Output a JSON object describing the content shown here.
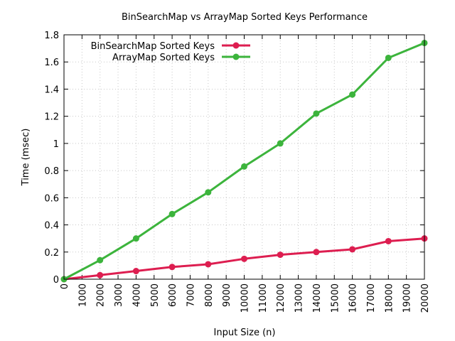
{
  "chart_data": {
    "type": "line",
    "title": "BinSearchMap vs ArrayMap Sorted Keys Performance",
    "xlabel": "Input Size (n)",
    "ylabel": "Time (msec)",
    "xlim": [
      0,
      20000
    ],
    "ylim": [
      0,
      1.8
    ],
    "xticks": [
      0,
      1000,
      2000,
      3000,
      4000,
      5000,
      6000,
      7000,
      8000,
      9000,
      10000,
      11000,
      12000,
      13000,
      14000,
      15000,
      16000,
      17000,
      18000,
      19000,
      20000
    ],
    "xtick_labels": [
      "0",
      "1000",
      "2000",
      "3000",
      "4000",
      "5000",
      "6000",
      "7000",
      "8000",
      "9000",
      "10000",
      "11000",
      "12000",
      "13000",
      "14000",
      "15000",
      "16000",
      "17000",
      "18000",
      "19000",
      "20000"
    ],
    "yticks": [
      0,
      0.2,
      0.4,
      0.6,
      0.8,
      1,
      1.2,
      1.4,
      1.6,
      1.8
    ],
    "ytick_labels": [
      "0",
      "0.2",
      "0.4",
      "0.6",
      "0.8",
      "1",
      "1.2",
      "1.4",
      "1.6",
      "1.8"
    ],
    "grid": true,
    "legend_position": "top-left",
    "x": [
      0,
      2000,
      4000,
      6000,
      8000,
      10000,
      12000,
      14000,
      16000,
      18000,
      20000
    ],
    "series": [
      {
        "name": "BinSearchMap Sorted Keys",
        "color": "#dd1e50",
        "values": [
          0,
          0.03,
          0.06,
          0.09,
          0.11,
          0.15,
          0.18,
          0.2,
          0.22,
          0.28,
          0.3
        ]
      },
      {
        "name": "ArrayMap Sorted Keys",
        "color": "#3cb43c",
        "values": [
          0,
          0.14,
          0.3,
          0.48,
          0.64,
          0.83,
          1.0,
          1.22,
          1.36,
          1.63,
          1.74
        ]
      }
    ]
  }
}
